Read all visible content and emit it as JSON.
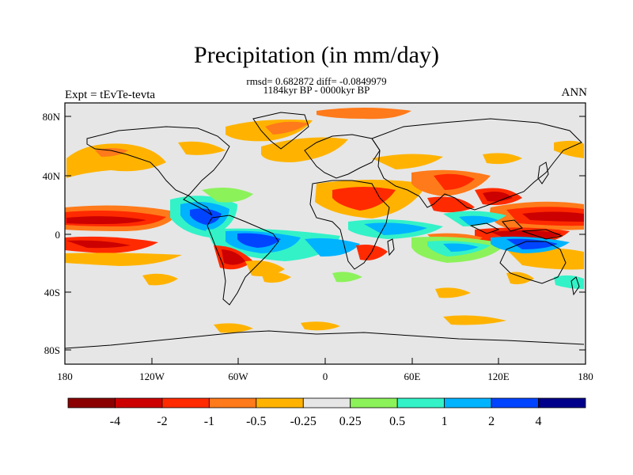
{
  "title": "Precipitation (in mm/day)",
  "stats": "rmsd= 0.682872 diff= -0.0849979",
  "period": "1184kyr BP - 0000kyr BP",
  "experiment": "Expt = tEvTe-tevta",
  "season": "ANN",
  "lat_ticks": [
    "80N",
    "40N",
    "0",
    "40S",
    "80S"
  ],
  "lon_ticks": [
    "180",
    "120W",
    "60W",
    "0",
    "60E",
    "120E",
    "180"
  ],
  "colorbar": {
    "labels": [
      "-4",
      "-2",
      "-1",
      "-0.5",
      "-0.25",
      "0.25",
      "0.5",
      "1",
      "2",
      "4"
    ],
    "colors": [
      "#8b0000",
      "#cc0000",
      "#ff2a00",
      "#ff7a1a",
      "#ffb300",
      "#e6e6e6",
      "#8cf25a",
      "#33f2c8",
      "#00b3ff",
      "#0044ff",
      "#00008b"
    ]
  }
}
